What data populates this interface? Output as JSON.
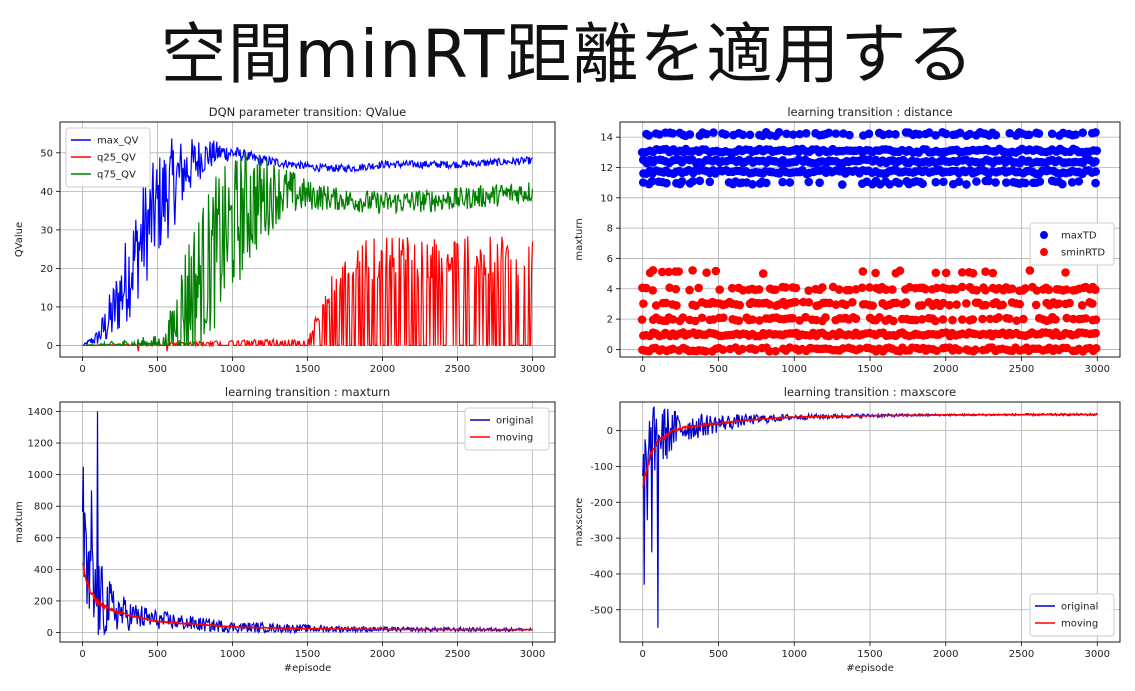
{
  "slide_title": "空間minRT距離を適用する",
  "chart_data": [
    {
      "type": "line",
      "title": "DQN parameter transition: QValue",
      "xlabel": "",
      "ylabel": "QValue",
      "xlim": [
        -150,
        3150
      ],
      "ylim": [
        -3,
        58
      ],
      "xticks": [
        0,
        500,
        1000,
        1500,
        2000,
        2500,
        3000
      ],
      "yticks": [
        0,
        10,
        20,
        30,
        40,
        50
      ],
      "grid": true,
      "legend_position": "top-left",
      "series": [
        {
          "name": "max_QV",
          "color": "#0000ff",
          "kind": "noisy",
          "x": [
            0,
            100,
            200,
            300,
            400,
            500,
            600,
            700,
            800,
            900,
            1000,
            1100,
            1200,
            1400,
            1600,
            1800,
            2000,
            2500,
            3000
          ],
          "y": [
            0,
            2,
            8,
            18,
            28,
            36,
            42,
            46,
            49,
            50,
            50,
            49,
            48,
            47,
            46,
            46,
            47,
            47,
            48
          ],
          "noise": [
            0,
            2,
            8,
            12,
            14,
            14,
            12,
            8,
            5,
            3,
            2,
            1.5,
            1.5,
            1,
            1,
            1,
            1,
            1,
            1
          ]
        },
        {
          "name": "q25_QV",
          "color": "#ff0000",
          "kind": "spikes",
          "x": [
            0,
            1500,
            1700,
            1900,
            2100,
            3000
          ],
          "y": [
            0,
            0,
            0,
            0,
            0,
            0
          ],
          "noise": [
            0,
            2,
            22,
            28,
            29,
            28
          ]
        },
        {
          "name": "q75_QV",
          "color": "#008000",
          "kind": "noisy",
          "x": [
            0,
            550,
            700,
            900,
            1100,
            1300,
            1500,
            1700,
            2000,
            2500,
            3000
          ],
          "y": [
            0,
            0,
            12,
            25,
            36,
            40,
            39,
            38,
            37,
            38,
            40
          ],
          "noise": [
            0,
            3,
            18,
            20,
            16,
            8,
            4,
            3,
            3,
            3,
            3
          ]
        }
      ]
    },
    {
      "type": "scatter",
      "title": "learning transition : distance",
      "xlabel": "",
      "ylabel": "maxturn",
      "xlim": [
        -150,
        3150
      ],
      "ylim": [
        -0.5,
        15
      ],
      "xticks": [
        0,
        500,
        1000,
        1500,
        2000,
        2500,
        3000
      ],
      "yticks": [
        0,
        2,
        4,
        6,
        8,
        10,
        12,
        14
      ],
      "grid": true,
      "legend_position": "center-right",
      "series": [
        {
          "name": "maxTD",
          "color": "#0000ff",
          "levels": [
            11,
            11.7,
            12.4,
            13.1,
            14.2
          ],
          "density": [
            0.5,
            1,
            1,
            1,
            0.6
          ],
          "x_max": 3000
        },
        {
          "name": "sminRTD",
          "color": "#ff0000",
          "levels": [
            0,
            1,
            2,
            3,
            4,
            5.1
          ],
          "density": [
            0.9,
            1,
            0.7,
            0.6,
            0.6,
            0.15
          ],
          "x_max": 3000
        }
      ]
    },
    {
      "type": "line",
      "title": "learning transition : maxturn",
      "xlabel": "#episode",
      "ylabel": "maxtum",
      "xlim": [
        -150,
        3150
      ],
      "ylim": [
        -60,
        1460
      ],
      "xticks": [
        0,
        500,
        1000,
        1500,
        2000,
        2500,
        3000
      ],
      "yticks": [
        0,
        200,
        400,
        600,
        800,
        1000,
        1200,
        1400
      ],
      "grid": true,
      "legend_position": "top-right",
      "series": [
        {
          "name": "original",
          "color": "#0000cc",
          "kind": "noisy",
          "x": [
            0,
            50,
            100,
            200,
            300,
            500,
            800,
            1000,
            1500,
            2000,
            3000
          ],
          "y": [
            400,
            250,
            200,
            150,
            110,
            80,
            50,
            35,
            25,
            20,
            18
          ],
          "noise": [
            400,
            350,
            280,
            150,
            100,
            60,
            45,
            35,
            25,
            15,
            10
          ],
          "peaks": [
            [
              5,
              1050
            ],
            [
              100,
              1400
            ],
            [
              60,
              900
            ],
            [
              15,
              760
            ]
          ]
        },
        {
          "name": "moving",
          "color": "#ff0000",
          "kind": "smooth",
          "x": [
            0,
            50,
            100,
            200,
            300,
            500,
            800,
            1000,
            1500,
            2000,
            3000
          ],
          "y": [
            420,
            260,
            190,
            140,
            110,
            70,
            50,
            35,
            25,
            20,
            18
          ],
          "noise": [
            60,
            40,
            30,
            20,
            15,
            10,
            8,
            5,
            3,
            2,
            2
          ]
        }
      ]
    },
    {
      "type": "line",
      "title": "learning transition : maxscore",
      "xlabel": "#episode",
      "ylabel": "maxscore",
      "xlim": [
        -150,
        3150
      ],
      "ylim": [
        -590,
        80
      ],
      "xticks": [
        0,
        500,
        1000,
        1500,
        2000,
        2500,
        3000
      ],
      "yticks": [
        -500,
        -400,
        -300,
        -200,
        -100,
        0
      ],
      "grid": true,
      "legend_position": "bottom-right",
      "series": [
        {
          "name": "original",
          "color": "#0000cc",
          "kind": "noisy",
          "x": [
            0,
            50,
            100,
            200,
            300,
            500,
            700,
            1000,
            1500,
            2000,
            3000
          ],
          "y": [
            -150,
            -60,
            -20,
            0,
            10,
            20,
            30,
            38,
            42,
            44,
            45
          ],
          "noise": [
            150,
            120,
            100,
            60,
            40,
            25,
            15,
            8,
            5,
            3,
            3
          ],
          "peaks": [
            [
              10,
              -430
            ],
            [
              100,
              -550
            ],
            [
              60,
              -340
            ],
            [
              30,
              -250
            ]
          ]
        },
        {
          "name": "moving",
          "color": "#ff0000",
          "kind": "smooth",
          "x": [
            0,
            50,
            100,
            200,
            300,
            500,
            700,
            1000,
            1500,
            2000,
            3000
          ],
          "y": [
            -150,
            -70,
            -30,
            0,
            10,
            20,
            30,
            38,
            42,
            44,
            45
          ],
          "noise": [
            30,
            20,
            15,
            10,
            6,
            4,
            3,
            2,
            1,
            1,
            1
          ]
        }
      ]
    }
  ]
}
